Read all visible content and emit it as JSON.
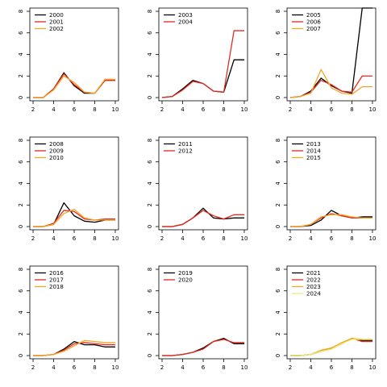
{
  "chart_data": [
    {
      "type": "line",
      "x": [
        2,
        3,
        4,
        5,
        6,
        7,
        8,
        9,
        10
      ],
      "xlim": [
        2,
        10
      ],
      "ylim": [
        0,
        8
      ],
      "xticks": [
        "2",
        "4",
        "6",
        "8",
        "10"
      ],
      "yticks": [
        "0",
        "2",
        "4",
        "6",
        "8"
      ],
      "legend_position": "top-left",
      "series": [
        {
          "name": "2000",
          "color": "#000000",
          "values": [
            0,
            0,
            0.8,
            2.3,
            1.1,
            0.4,
            0.4,
            1.6,
            1.6
          ]
        },
        {
          "name": "2001",
          "color": "#e8291f",
          "values": [
            0,
            0,
            0.8,
            2.2,
            1.2,
            0.5,
            0.4,
            1.6,
            1.6
          ]
        },
        {
          "name": "2002",
          "color": "#f5a623",
          "values": [
            0,
            0,
            0.7,
            2.0,
            1.4,
            0.5,
            0.4,
            1.7,
            1.7
          ]
        }
      ]
    },
    {
      "type": "line",
      "x": [
        2,
        3,
        4,
        5,
        6,
        7,
        8,
        9,
        10
      ],
      "xlim": [
        2,
        10
      ],
      "ylim": [
        0,
        8
      ],
      "xticks": [
        "2",
        "4",
        "6",
        "8",
        "10"
      ],
      "yticks": [
        "0",
        "2",
        "4",
        "6",
        "8"
      ],
      "legend_position": "top-left",
      "series": [
        {
          "name": "2003",
          "color": "#000000",
          "values": [
            0,
            0.1,
            0.8,
            1.6,
            1.3,
            0.6,
            0.5,
            3.5,
            3.5
          ]
        },
        {
          "name": "2004",
          "color": "#e8291f",
          "values": [
            0,
            0.1,
            0.7,
            1.5,
            1.3,
            0.6,
            0.5,
            6.2,
            6.2
          ]
        }
      ]
    },
    {
      "type": "line",
      "x": [
        2,
        3,
        4,
        5,
        6,
        7,
        8,
        9,
        10
      ],
      "xlim": [
        2,
        10
      ],
      "ylim": [
        0,
        8
      ],
      "xticks": [
        "2",
        "4",
        "6",
        "8",
        "10"
      ],
      "yticks": [
        "0",
        "2",
        "4",
        "6",
        "8"
      ],
      "legend_position": "top-left",
      "series": [
        {
          "name": "2005",
          "color": "#000000",
          "values": [
            0,
            0.1,
            0.6,
            1.8,
            1.1,
            0.6,
            0.4,
            8.3,
            8.3
          ]
        },
        {
          "name": "2006",
          "color": "#e8291f",
          "values": [
            0,
            0.1,
            0.5,
            1.6,
            1.2,
            0.6,
            0.5,
            2.0,
            2.0
          ]
        },
        {
          "name": "2007",
          "color": "#f5a623",
          "values": [
            0,
            0.1,
            0.4,
            2.6,
            0.9,
            0.4,
            0.3,
            1.0,
            1.0
          ]
        }
      ]
    },
    {
      "type": "line",
      "x": [
        2,
        3,
        4,
        5,
        6,
        7,
        8,
        9,
        10
      ],
      "xlim": [
        2,
        10
      ],
      "ylim": [
        0,
        8
      ],
      "xticks": [
        "2",
        "4",
        "6",
        "8",
        "10"
      ],
      "yticks": [
        "0",
        "2",
        "4",
        "6",
        "8"
      ],
      "legend_position": "top-left",
      "series": [
        {
          "name": "2008",
          "color": "#000000",
          "values": [
            0,
            0,
            0.2,
            2.2,
            1.0,
            0.5,
            0.4,
            0.6,
            0.6
          ]
        },
        {
          "name": "2009",
          "color": "#e8291f",
          "values": [
            0,
            0,
            0.3,
            1.5,
            1.4,
            0.7,
            0.6,
            0.7,
            0.7
          ]
        },
        {
          "name": "2010",
          "color": "#f5a623",
          "values": [
            0,
            0,
            0.2,
            1.2,
            1.6,
            0.8,
            0.6,
            0.6,
            0.6
          ]
        }
      ]
    },
    {
      "type": "line",
      "x": [
        2,
        3,
        4,
        5,
        6,
        7,
        8,
        9,
        10
      ],
      "xlim": [
        2,
        10
      ],
      "ylim": [
        0,
        8
      ],
      "xticks": [
        "2",
        "4",
        "6",
        "8",
        "10"
      ],
      "yticks": [
        "0",
        "2",
        "4",
        "6",
        "8"
      ],
      "legend_position": "top-left",
      "series": [
        {
          "name": "2011",
          "color": "#000000",
          "values": [
            0,
            0,
            0.2,
            0.8,
            1.7,
            0.8,
            0.7,
            0.8,
            0.8
          ]
        },
        {
          "name": "2012",
          "color": "#e8291f",
          "values": [
            0,
            0,
            0.2,
            0.8,
            1.5,
            1.0,
            0.7,
            1.1,
            1.1
          ]
        }
      ]
    },
    {
      "type": "line",
      "x": [
        2,
        3,
        4,
        5,
        6,
        7,
        8,
        9,
        10
      ],
      "xlim": [
        2,
        10
      ],
      "ylim": [
        0,
        8
      ],
      "xticks": [
        "2",
        "4",
        "6",
        "8",
        "10"
      ],
      "yticks": [
        "0",
        "2",
        "4",
        "6",
        "8"
      ],
      "legend_position": "top-left",
      "series": [
        {
          "name": "2013",
          "color": "#000000",
          "values": [
            0,
            0,
            0.1,
            0.6,
            1.5,
            1.0,
            0.8,
            0.9,
            0.9
          ]
        },
        {
          "name": "2014",
          "color": "#e8291f",
          "values": [
            0,
            0,
            0.2,
            0.8,
            1.2,
            1.0,
            0.8,
            0.8,
            0.8
          ]
        },
        {
          "name": "2015",
          "color": "#f5a623",
          "values": [
            0,
            0,
            0.2,
            0.9,
            1.1,
            1.1,
            0.9,
            0.8,
            0.8
          ]
        }
      ]
    },
    {
      "type": "line",
      "x": [
        2,
        3,
        4,
        5,
        6,
        7,
        8,
        9,
        10
      ],
      "xlim": [
        2,
        10
      ],
      "ylim": [
        0,
        8
      ],
      "xticks": [
        "2",
        "4",
        "6",
        "8",
        "10"
      ],
      "yticks": [
        "0",
        "2",
        "4",
        "6",
        "8"
      ],
      "legend_position": "top-left",
      "series": [
        {
          "name": "2016",
          "color": "#000000",
          "values": [
            0,
            0,
            0.1,
            0.6,
            1.3,
            1.0,
            1.0,
            0.8,
            0.8
          ]
        },
        {
          "name": "2017",
          "color": "#e8291f",
          "values": [
            0,
            0,
            0.1,
            0.5,
            1.1,
            1.2,
            1.1,
            1.0,
            1.0
          ]
        },
        {
          "name": "2018",
          "color": "#f5a623",
          "values": [
            0,
            0,
            0.1,
            0.4,
            0.9,
            1.4,
            1.3,
            1.2,
            1.2
          ]
        }
      ]
    },
    {
      "type": "line",
      "x": [
        2,
        3,
        4,
        5,
        6,
        7,
        8,
        9,
        10
      ],
      "xlim": [
        2,
        10
      ],
      "ylim": [
        0,
        8
      ],
      "xticks": [
        "2",
        "4",
        "6",
        "8",
        "10"
      ],
      "yticks": [
        "0",
        "2",
        "4",
        "6",
        "8"
      ],
      "legend_position": "top-left",
      "series": [
        {
          "name": "2019",
          "color": "#000000",
          "values": [
            0,
            0,
            0.1,
            0.3,
            0.7,
            1.3,
            1.6,
            1.1,
            1.1
          ]
        },
        {
          "name": "2020",
          "color": "#e8291f",
          "values": [
            0,
            0,
            0.1,
            0.3,
            0.6,
            1.3,
            1.5,
            1.2,
            1.2
          ]
        }
      ]
    },
    {
      "type": "line",
      "x": [
        2,
        3,
        4,
        5,
        6,
        7,
        8,
        9,
        10
      ],
      "xlim": [
        2,
        10
      ],
      "ylim": [
        0,
        8
      ],
      "xticks": [
        "2",
        "4",
        "6",
        "8",
        "10"
      ],
      "yticks": [
        "0",
        "2",
        "4",
        "6",
        "8"
      ],
      "legend_position": "top-left",
      "series": [
        {
          "name": "2021",
          "color": "#000000",
          "values": [
            0,
            0,
            0.1,
            0.4,
            0.7,
            1.1,
            1.6,
            1.4,
            1.4
          ]
        },
        {
          "name": "2022",
          "color": "#e8291f",
          "values": [
            0,
            0,
            0.1,
            0.4,
            0.6,
            1.1,
            1.6,
            1.3,
            1.3
          ]
        },
        {
          "name": "2023",
          "color": "#f5a623",
          "values": [
            0,
            0,
            0.1,
            0.5,
            0.7,
            1.2,
            1.6,
            1.5,
            1.5
          ]
        },
        {
          "name": "2024",
          "color": "#e6f26a",
          "values": [
            0,
            0,
            0.1,
            0.4,
            0.6,
            1.1,
            1.5,
            1.5,
            1.5
          ]
        }
      ]
    }
  ]
}
